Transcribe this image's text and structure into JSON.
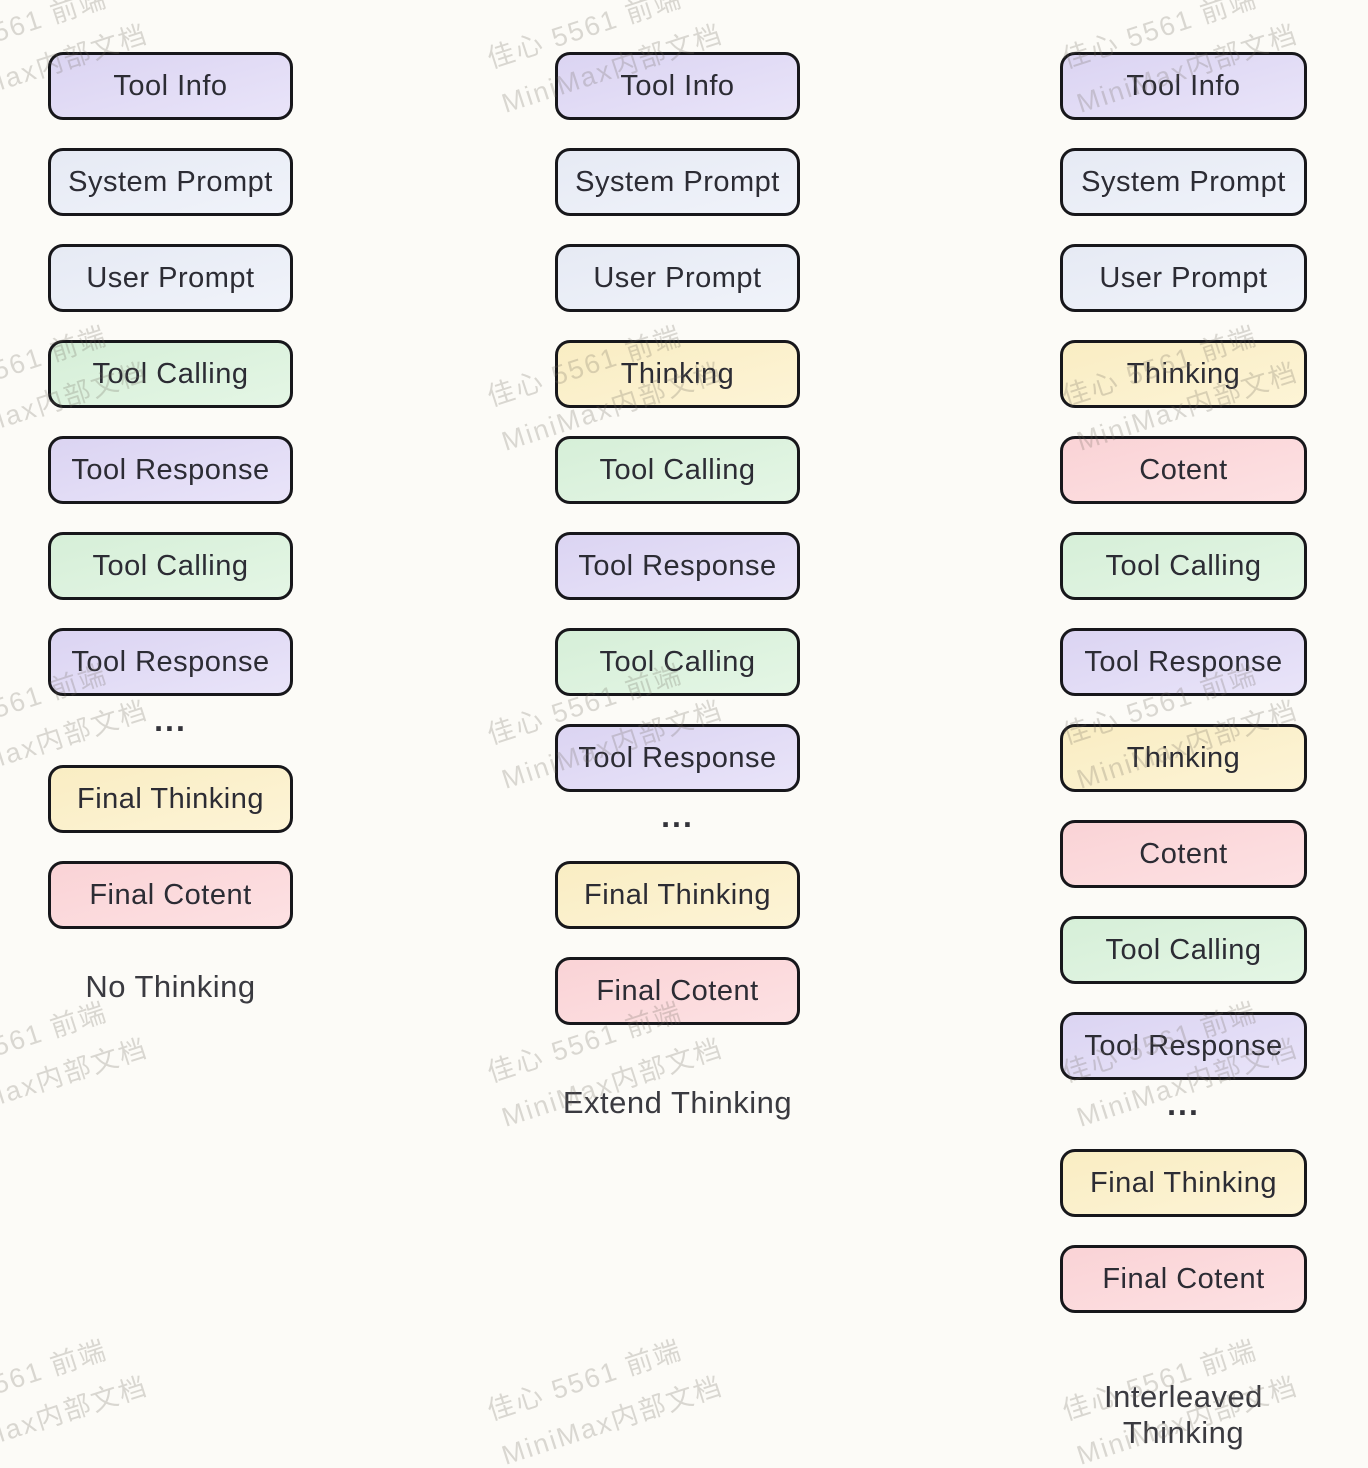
{
  "watermark": {
    "line1": "佳心 5561 前端",
    "line2": "MiniMax内部文档"
  },
  "background": "#fcfbf7",
  "border_color": "#17171b",
  "text_color": "#2c2c34",
  "palette": {
    "purple": {
      "from": "#dbd4f2",
      "to": "#e9e4f9"
    },
    "blue": {
      "from": "#e6eaf4",
      "to": "#f0f3fa"
    },
    "yellow": {
      "from": "#f9edc3",
      "to": "#fdf4d6"
    },
    "green": {
      "from": "#d6efd8",
      "to": "#e4f6e5"
    },
    "pink": {
      "from": "#fad3d6",
      "to": "#fde1e3"
    }
  },
  "columns": [
    {
      "label": "No Thinking",
      "items": [
        {
          "text": "Tool Info",
          "type": "purple"
        },
        {
          "text": "System Prompt",
          "type": "blue"
        },
        {
          "text": "User Prompt",
          "type": "blue"
        },
        {
          "text": "Tool Calling",
          "type": "green"
        },
        {
          "text": "Tool Response",
          "type": "purple"
        },
        {
          "text": "Tool Calling",
          "type": "green"
        },
        {
          "text": "Tool Response",
          "type": "purple"
        },
        {
          "text": "...",
          "type": "dots"
        },
        {
          "text": "Final Thinking",
          "type": "yellow"
        },
        {
          "text": "Final Cotent",
          "type": "pink"
        }
      ]
    },
    {
      "label": "Extend Thinking",
      "items": [
        {
          "text": "Tool Info",
          "type": "purple"
        },
        {
          "text": "System Prompt",
          "type": "blue"
        },
        {
          "text": "User Prompt",
          "type": "blue"
        },
        {
          "text": "Thinking",
          "type": "yellow"
        },
        {
          "text": "Tool Calling",
          "type": "green"
        },
        {
          "text": "Tool Response",
          "type": "purple"
        },
        {
          "text": "Tool Calling",
          "type": "green"
        },
        {
          "text": "Tool Response",
          "type": "purple"
        },
        {
          "text": "...",
          "type": "dots"
        },
        {
          "text": "Final Thinking",
          "type": "yellow"
        },
        {
          "text": "Final Cotent",
          "type": "pink"
        }
      ]
    },
    {
      "label": "Interleaved Thinking",
      "items": [
        {
          "text": "Tool Info",
          "type": "purple"
        },
        {
          "text": "System Prompt",
          "type": "blue"
        },
        {
          "text": "User Prompt",
          "type": "blue"
        },
        {
          "text": "Thinking",
          "type": "yellow"
        },
        {
          "text": "Cotent",
          "type": "pink"
        },
        {
          "text": "Tool Calling",
          "type": "green"
        },
        {
          "text": "Tool Response",
          "type": "purple"
        },
        {
          "text": "Thinking",
          "type": "yellow"
        },
        {
          "text": "Cotent",
          "type": "pink"
        },
        {
          "text": "Tool Calling",
          "type": "green"
        },
        {
          "text": "Tool Response",
          "type": "purple"
        },
        {
          "text": "...",
          "type": "dots"
        },
        {
          "text": "Final Thinking",
          "type": "yellow"
        },
        {
          "text": "Final Cotent",
          "type": "pink"
        }
      ]
    }
  ]
}
